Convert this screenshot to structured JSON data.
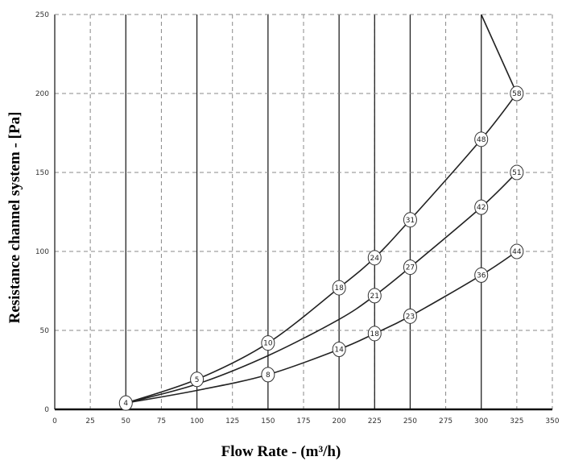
{
  "chart_data": {
    "type": "line",
    "xlabel": "Flow Rate - (m³/h)",
    "ylabel": "Resistance channel system - [Pa]",
    "xlim": [
      0,
      350
    ],
    "ylim": [
      0,
      250
    ],
    "xticks": [
      0,
      25,
      50,
      75,
      100,
      125,
      150,
      175,
      200,
      225,
      250,
      275,
      300,
      325,
      350
    ],
    "yticks": [
      0,
      50,
      100,
      150,
      200,
      250
    ],
    "grid": true,
    "series": [
      {
        "curve": [
          [
            50,
            4
          ],
          [
            100,
            19
          ],
          [
            150,
            42
          ],
          [
            200,
            77
          ],
          [
            225,
            96
          ],
          [
            250,
            120
          ],
          [
            300,
            171
          ],
          [
            325,
            200
          ]
        ],
        "markers": [
          {
            "x": 50,
            "y": 4,
            "label": "4"
          },
          {
            "x": 100,
            "y": 19,
            "label": "5"
          },
          {
            "x": 150,
            "y": 42,
            "label": "10"
          },
          {
            "x": 200,
            "y": 77,
            "label": "18"
          },
          {
            "x": 225,
            "y": 96,
            "label": "24"
          },
          {
            "x": 250,
            "y": 120,
            "label": "31"
          },
          {
            "x": 300,
            "y": 171,
            "label": "48"
          },
          {
            "x": 325,
            "y": 200,
            "label": "58"
          }
        ]
      },
      {
        "curve": [
          [
            50,
            4
          ],
          [
            100,
            16
          ],
          [
            150,
            34
          ],
          [
            200,
            57
          ],
          [
            225,
            72
          ],
          [
            250,
            90
          ],
          [
            300,
            128
          ],
          [
            325,
            150
          ]
        ],
        "markers": [
          {
            "x": 225,
            "y": 72,
            "label": "21"
          },
          {
            "x": 250,
            "y": 90,
            "label": "27"
          },
          {
            "x": 300,
            "y": 128,
            "label": "42"
          },
          {
            "x": 325,
            "y": 150,
            "label": "51"
          }
        ]
      },
      {
        "curve": [
          [
            50,
            4
          ],
          [
            100,
            12
          ],
          [
            150,
            22
          ],
          [
            200,
            38
          ],
          [
            225,
            48
          ],
          [
            250,
            59
          ],
          [
            300,
            85
          ],
          [
            325,
            100
          ]
        ],
        "markers": [
          {
            "x": 150,
            "y": 22,
            "label": "8"
          },
          {
            "x": 200,
            "y": 38,
            "label": "14"
          },
          {
            "x": 225,
            "y": 48,
            "label": "18"
          },
          {
            "x": 250,
            "y": 59,
            "label": "23"
          },
          {
            "x": 300,
            "y": 85,
            "label": "36"
          },
          {
            "x": 325,
            "y": 100,
            "label": "44"
          }
        ]
      }
    ],
    "limit_line": [
      [
        300,
        250
      ],
      [
        325,
        200
      ]
    ]
  }
}
